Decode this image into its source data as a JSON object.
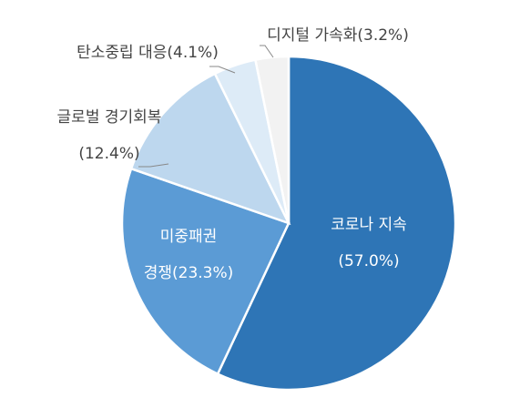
{
  "chart_data": {
    "type": "pie",
    "title": "",
    "slices": [
      {
        "lines": [
          "코로나 지속",
          "(57.0%)"
        ],
        "value": 57.0,
        "color": "#2e75b6"
      },
      {
        "lines": [
          "미중패권",
          "경쟁(23.3%)"
        ],
        "value": 23.3,
        "color": "#5b9bd5"
      },
      {
        "lines": [
          "글로벌 경기회복",
          "(12.4%)"
        ],
        "value": 12.4,
        "color": "#bdd7ee"
      },
      {
        "lines": [
          "탄소중립 대응(4.1%)"
        ],
        "value": 4.1,
        "color": "#ddebf7"
      },
      {
        "lines": [
          "디지털 가속화(3.2%)"
        ],
        "value": 3.2,
        "color": "#f2f2f2"
      }
    ]
  }
}
